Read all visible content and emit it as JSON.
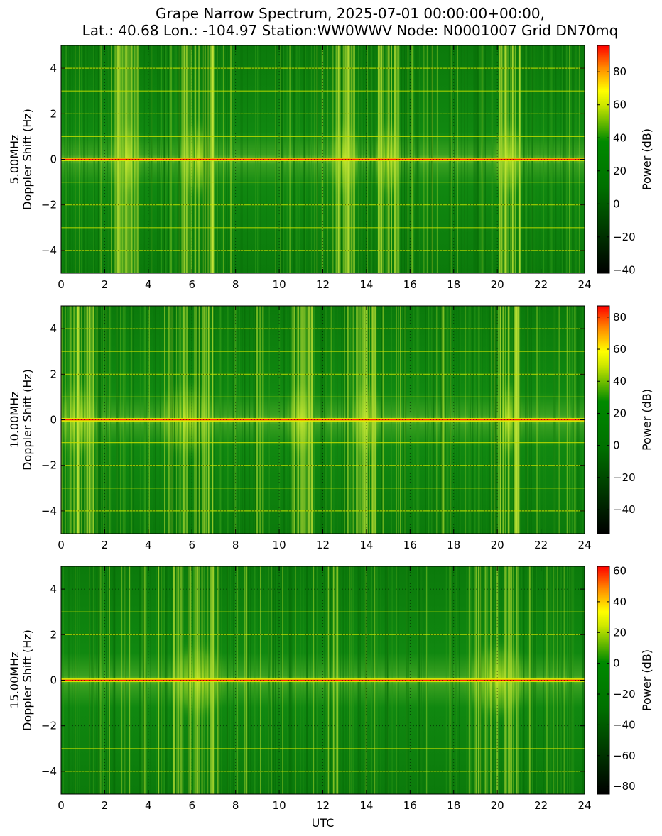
{
  "figure": {
    "title_lines": [
      "Grape Narrow Spectrum, 2025-07-01 00:00:00+00:00,",
      "Lat.: 40.68 Lon.: -104.97 Station:WW0WWV Node: N0001007 Grid DN70mq"
    ],
    "colormap": [
      "#000000",
      "#007000",
      "#008a00",
      "#cfe800",
      "#ffff00",
      "#ff8c00",
      "#ff0000"
    ]
  },
  "chart_data": [
    {
      "type": "heatmap",
      "panel": "5.00MHz",
      "ylabel_lines": [
        "5.00MHz",
        "Doppler Shift (Hz)"
      ],
      "xlabel": "",
      "xlim": [
        0,
        24
      ],
      "ylim": [
        -5,
        5
      ],
      "xticks": [
        0,
        2,
        4,
        6,
        8,
        10,
        12,
        14,
        16,
        18,
        20,
        22,
        24
      ],
      "yticks": [
        -4,
        -2,
        0,
        2,
        4
      ],
      "ytick_labels": [
        "−4",
        "−2",
        "0",
        "2",
        "4"
      ],
      "grid": true,
      "colorbar": {
        "label": "Power (dB)",
        "range": [
          -42,
          96
        ],
        "ticks": [
          -40,
          -20,
          0,
          20,
          40,
          60,
          80
        ],
        "tick_labels": [
          "−40",
          "−20",
          "0",
          "20",
          "40",
          "60",
          "80"
        ]
      },
      "carrier_hz": 0,
      "tone_lines_hz": [
        4,
        3,
        2,
        1,
        -1,
        -2,
        -3,
        -4
      ],
      "bright_intervals_utc": [
        [
          2.5,
          3.5
        ],
        [
          5.5,
          7.0
        ],
        [
          12.5,
          13.5
        ],
        [
          14.5,
          15.5
        ],
        [
          20.0,
          21.0
        ]
      ]
    },
    {
      "type": "heatmap",
      "panel": "10.00MHz",
      "ylabel_lines": [
        "10.00MHz",
        "Doppler Shift (Hz)"
      ],
      "xlabel": "",
      "xlim": [
        0,
        24
      ],
      "ylim": [
        -5,
        5
      ],
      "xticks": [
        0,
        2,
        4,
        6,
        8,
        10,
        12,
        14,
        16,
        18,
        20,
        22,
        24
      ],
      "yticks": [
        -4,
        -2,
        0,
        2,
        4
      ],
      "ytick_labels": [
        "−4",
        "−2",
        "0",
        "2",
        "4"
      ],
      "grid": true,
      "colorbar": {
        "label": "Power (dB)",
        "range": [
          -55,
          87
        ],
        "ticks": [
          -40,
          -20,
          0,
          20,
          40,
          60,
          80
        ],
        "tick_labels": [
          "−40",
          "−20",
          "0",
          "20",
          "40",
          "60",
          "80"
        ]
      },
      "carrier_hz": 0,
      "tone_lines_hz": [
        4,
        3,
        2,
        1,
        -1,
        -2,
        -3,
        -4
      ],
      "bright_intervals_utc": [
        [
          0.0,
          1.5
        ],
        [
          4.5,
          7.0
        ],
        [
          10.5,
          11.5
        ],
        [
          13.5,
          14.5
        ],
        [
          20.0,
          21.0
        ]
      ]
    },
    {
      "type": "heatmap",
      "panel": "15.00MHz",
      "ylabel_lines": [
        "15.00MHz",
        "Doppler Shift (Hz)"
      ],
      "xlabel": "UTC",
      "xlim": [
        0,
        24
      ],
      "ylim": [
        -5,
        5
      ],
      "xticks": [
        0,
        2,
        4,
        6,
        8,
        10,
        12,
        14,
        16,
        18,
        20,
        22,
        24
      ],
      "yticks": [
        -4,
        -2,
        0,
        2,
        4
      ],
      "ytick_labels": [
        "−4",
        "−2",
        "0",
        "2",
        "4"
      ],
      "grid": true,
      "colorbar": {
        "label": "Power (dB)",
        "range": [
          -85,
          63
        ],
        "ticks": [
          -80,
          -60,
          -40,
          -20,
          0,
          20,
          40,
          60
        ],
        "tick_labels": [
          "−80",
          "−60",
          "−40",
          "−20",
          "0",
          "20",
          "40",
          "60"
        ]
      },
      "carrier_hz": 0,
      "tone_lines_hz": [
        3,
        2,
        -3,
        -4
      ],
      "bright_intervals_utc": [
        [
          5.0,
          7.5
        ],
        [
          18.5,
          21.5
        ]
      ]
    }
  ]
}
